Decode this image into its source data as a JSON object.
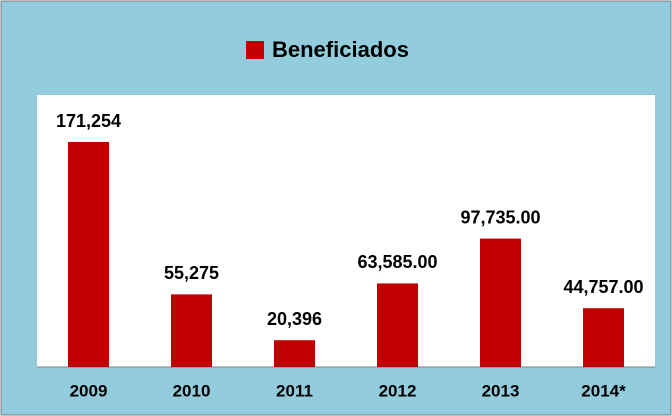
{
  "chart_data": {
    "type": "bar",
    "categories": [
      "2009",
      "2010",
      "2011",
      "2012",
      "2013",
      "2014*"
    ],
    "series": [
      {
        "name": "Beneficiados",
        "color": "#c00000",
        "values": [
          171254,
          55275,
          20396,
          63585,
          97735,
          44757
        ],
        "value_labels": [
          "171,254",
          "55,275",
          "20,396",
          "63,585.00",
          "97,735.00",
          "44,757.00"
        ]
      }
    ]
  }
}
